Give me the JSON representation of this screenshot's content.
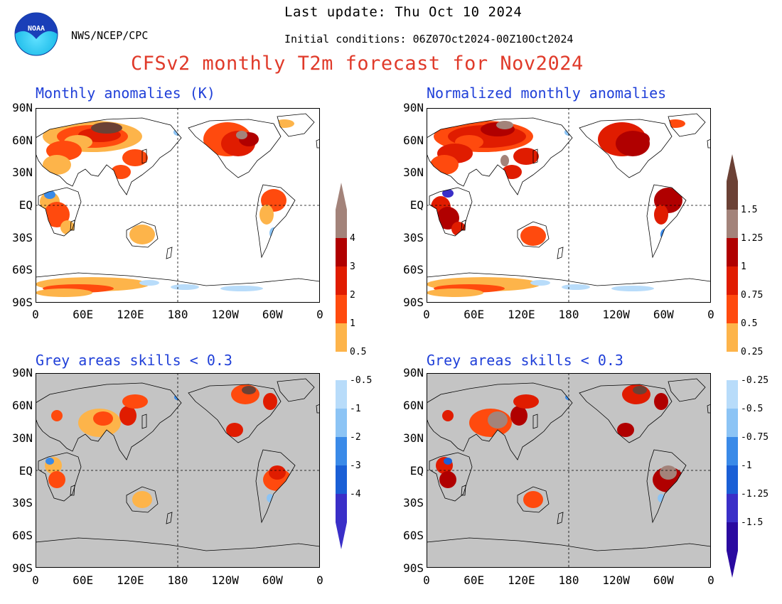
{
  "header": {
    "last_update": "Last update: Thu Oct 10 2024",
    "agency": "NWS/NCEP/CPC",
    "initial_conditions": "Initial conditions: 06Z07Oct2024-00Z10Oct2024",
    "title": "CFSv2 monthly T2m forecast for Nov2024",
    "logo_text": "NOAA"
  },
  "panels": {
    "anom": {
      "title": "Monthly anomalies (K)"
    },
    "norm": {
      "title": "Normalized monthly anomalies"
    },
    "skill_anom": {
      "title": "Grey areas skills < 0.3"
    },
    "skill_norm": {
      "title": "Grey areas skills < 0.3"
    }
  },
  "axes": {
    "lat_labels": [
      "90N",
      "60N",
      "30N",
      "EQ",
      "30S",
      "60S",
      "90S"
    ],
    "lon_labels": [
      "0",
      "60E",
      "120E",
      "180",
      "120W",
      "60W",
      "0"
    ]
  },
  "colorbar_anom": {
    "labels_warm": [
      "4",
      "3",
      "2",
      "1",
      "0.5"
    ],
    "labels_cool": [
      "-0.5",
      "-1",
      "-2",
      "-3",
      "-4"
    ]
  },
  "colorbar_norm": {
    "labels_warm": [
      "1.5",
      "1.25",
      "1",
      "0.75",
      "0.5",
      "0.25"
    ],
    "labels_cool": [
      "-0.25",
      "-0.5",
      "-0.75",
      "-1",
      "-1.25",
      "-1.5"
    ]
  },
  "colors": {
    "warm": [
      "#fdb44a",
      "#ff4a0e",
      "#e01c00",
      "#b00000",
      "#a3837a",
      "#6b4135"
    ],
    "cool": [
      "#b8dcfa",
      "#8cc4f5",
      "#3a8ae8",
      "#1a5fd6",
      "#3a2fc8",
      "#2a0aa0"
    ],
    "neutral": "#ffffff",
    "skill_grey": "#c4c4c4",
    "title_red": "#e03a2a",
    "panel_title_blue": "#1f3fd8",
    "logo_blue": "#1a5fd6",
    "logo_cyan": "#28c8f0"
  }
}
